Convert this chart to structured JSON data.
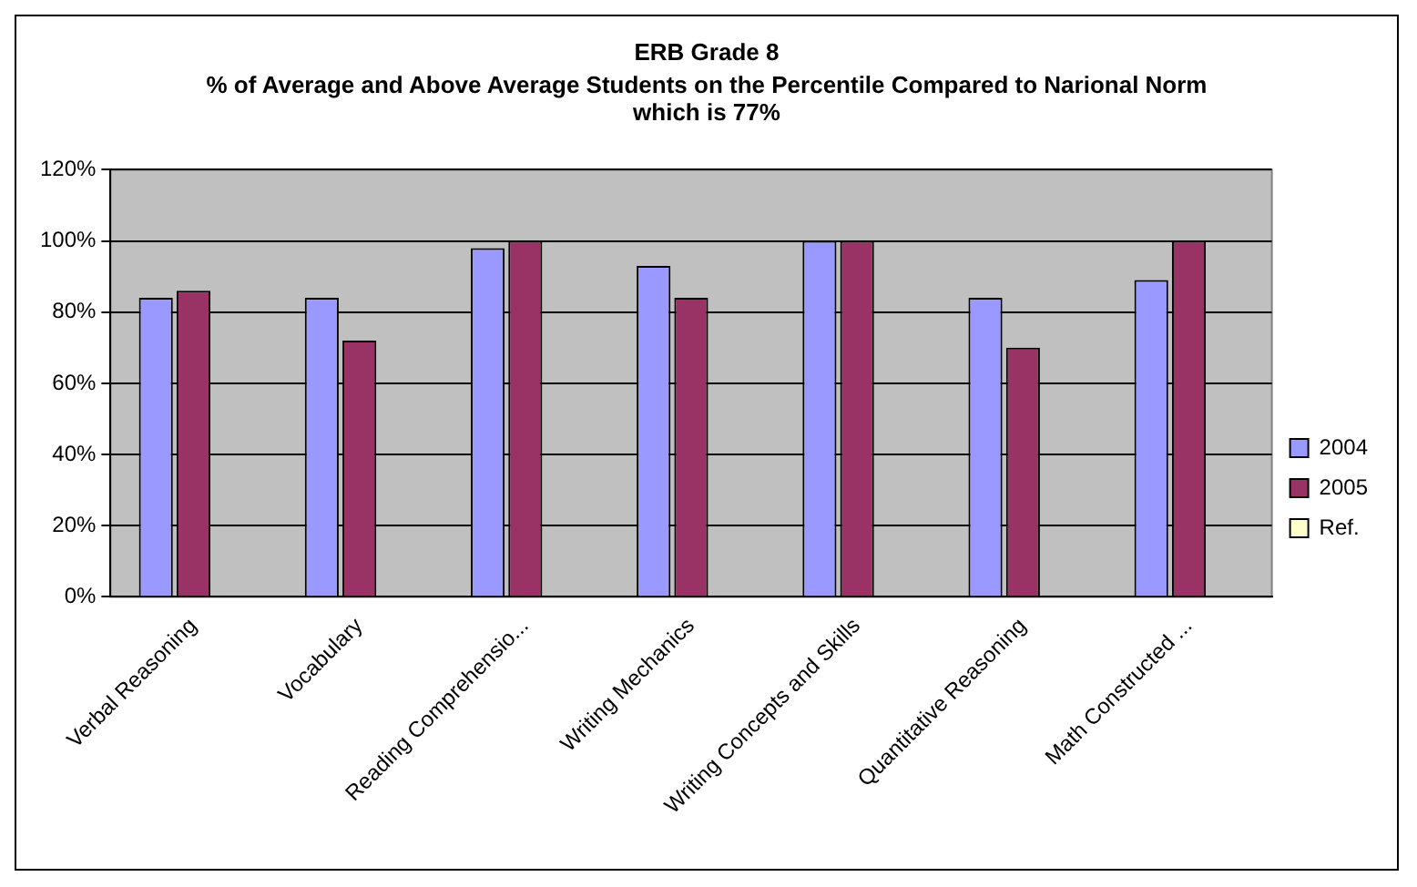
{
  "chart_data": {
    "type": "bar",
    "title": "ERB Grade 8",
    "subtitle": "% of Average and Above Average Students on the Percentile Compared to Narional Norm which is 77%",
    "categories": [
      "Verbal Reasoning",
      "Vocabulary",
      "Reading Comprehensio...",
      "Writing Mechanics",
      "Writing Concepts and Skills",
      "Quantitative Reasoning",
      "Math Constructed ..."
    ],
    "series": [
      {
        "name": "2004",
        "color": "#9999ff",
        "values": [
          84,
          84,
          98,
          93,
          100,
          84,
          89
        ]
      },
      {
        "name": "2005",
        "color": "#993366",
        "values": [
          86,
          72,
          100,
          84,
          100,
          70,
          100
        ]
      },
      {
        "name": "Ref.",
        "color": "#ffffcc",
        "values": [
          null,
          null,
          null,
          null,
          null,
          null,
          null
        ]
      }
    ],
    "ylim": [
      0,
      120
    ],
    "yticks": [
      {
        "value": 0,
        "label": "0%"
      },
      {
        "value": 20,
        "label": "20%"
      },
      {
        "value": 40,
        "label": "40%"
      },
      {
        "value": 60,
        "label": "60%"
      },
      {
        "value": 80,
        "label": "80%"
      },
      {
        "value": 100,
        "label": "100%"
      },
      {
        "value": 120,
        "label": "120%"
      }
    ],
    "grid": "y",
    "legend": "right"
  }
}
